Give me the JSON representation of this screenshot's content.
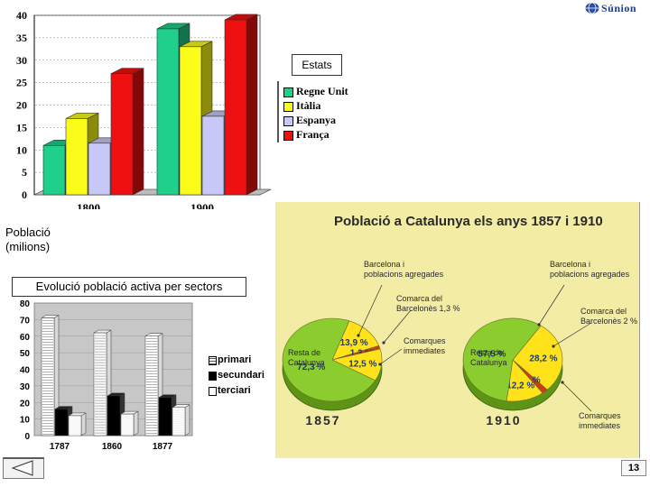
{
  "brand": {
    "name": "Súnion"
  },
  "chart_data": [
    {
      "type": "bar",
      "categories": [
        "1800",
        "1900"
      ],
      "series": [
        {
          "name": "Regne Unit",
          "values": [
            11,
            37
          ]
        },
        {
          "name": "Itàlia",
          "values": [
            17,
            33
          ]
        },
        {
          "name": "Espanya",
          "values": [
            11.5,
            17.5
          ]
        },
        {
          "name": "França",
          "values": [
            27,
            39
          ]
        }
      ],
      "title": "Estats",
      "ylabel": "Població (milions)",
      "ylim": [
        0,
        40
      ],
      "yticks": [
        0,
        5,
        10,
        15,
        20,
        25,
        30,
        35,
        40
      ],
      "grid": true,
      "colors": [
        "#1fcf8a",
        "#fcfc1a",
        "#c8c8f8",
        "#ee1010"
      ],
      "legend": "right"
    },
    {
      "type": "bar",
      "categories": [
        "1787",
        "1860",
        "1877"
      ],
      "series": [
        {
          "name": "primari",
          "values": [
            71,
            62,
            60
          ]
        },
        {
          "name": "secundari",
          "values": [
            16,
            24,
            23
          ]
        },
        {
          "name": "terciari",
          "values": [
            12,
            13,
            17
          ]
        }
      ],
      "title": "Evolució població activa per sectors",
      "ylim": [
        0,
        80
      ],
      "yticks": [
        0,
        10,
        20,
        30,
        40,
        50,
        60,
        70,
        80
      ],
      "grid": true,
      "legend": "right"
    },
    {
      "type": "pie",
      "title": "Població a Catalunya els anys 1857 i 1910",
      "pies": [
        {
          "label": "1857",
          "slices": [
            {
              "name": "Resta de Catalunya",
              "value": 72.3,
              "label": "72,3 %",
              "color": "#8bcc2e"
            },
            {
              "name": "Barcelona i poblacions agregades",
              "value": 13.9,
              "label": "13,9 %",
              "color": "#ffe21a"
            },
            {
              "name": "Comarca del Barcelonès",
              "value": 1.3,
              "label": "1,3 %",
              "color": "#d23c12"
            },
            {
              "name": "Comarques immediates",
              "value": 12.5,
              "label": "12,5 %",
              "color": "#ffe21a"
            }
          ]
        },
        {
          "label": "1910",
          "slices": [
            {
              "name": "Resta de Catalunya",
              "value": 57.5,
              "label": "57,5 %",
              "color": "#8bcc2e"
            },
            {
              "name": "Barcelona i poblacions agregades",
              "value": 28.2,
              "label": "28,2 %",
              "color": "#ffe21a"
            },
            {
              "name": "Comarca del Barcelonès",
              "value": 2,
              "label": "2 %",
              "color": "#d23c12"
            },
            {
              "name": "Comarques immediates",
              "value": 12.2,
              "label": "12,2 %",
              "color": "#ffe21a"
            }
          ]
        }
      ]
    }
  ],
  "pie_text": {
    "barcelona_1857": [
      "Barcelona i",
      "poblacions agregades"
    ],
    "barcelona_1910": [
      "Barcelona i",
      "poblacions agregades"
    ],
    "comarca_1857": [
      "Comarca del",
      "Barcelonès 1,3 %"
    ],
    "comarca_1910": [
      "Comarca del",
      "Barcelonès 2 %"
    ],
    "immediates_1857": [
      "Comarques",
      "immediates"
    ],
    "immediates_1910": [
      "Comarques",
      "immediates"
    ],
    "resta_1857": [
      "Resta de",
      "Catalunya"
    ],
    "resta_1910": [
      "Resta de",
      "Catalunya"
    ]
  },
  "labels": {
    "estats": "Estats",
    "poblacio_line1": "Població",
    "poblacio_line2": "(milions)"
  },
  "nav": {
    "back_icon": "triangle-left-icon"
  },
  "page": {
    "number": "13"
  }
}
